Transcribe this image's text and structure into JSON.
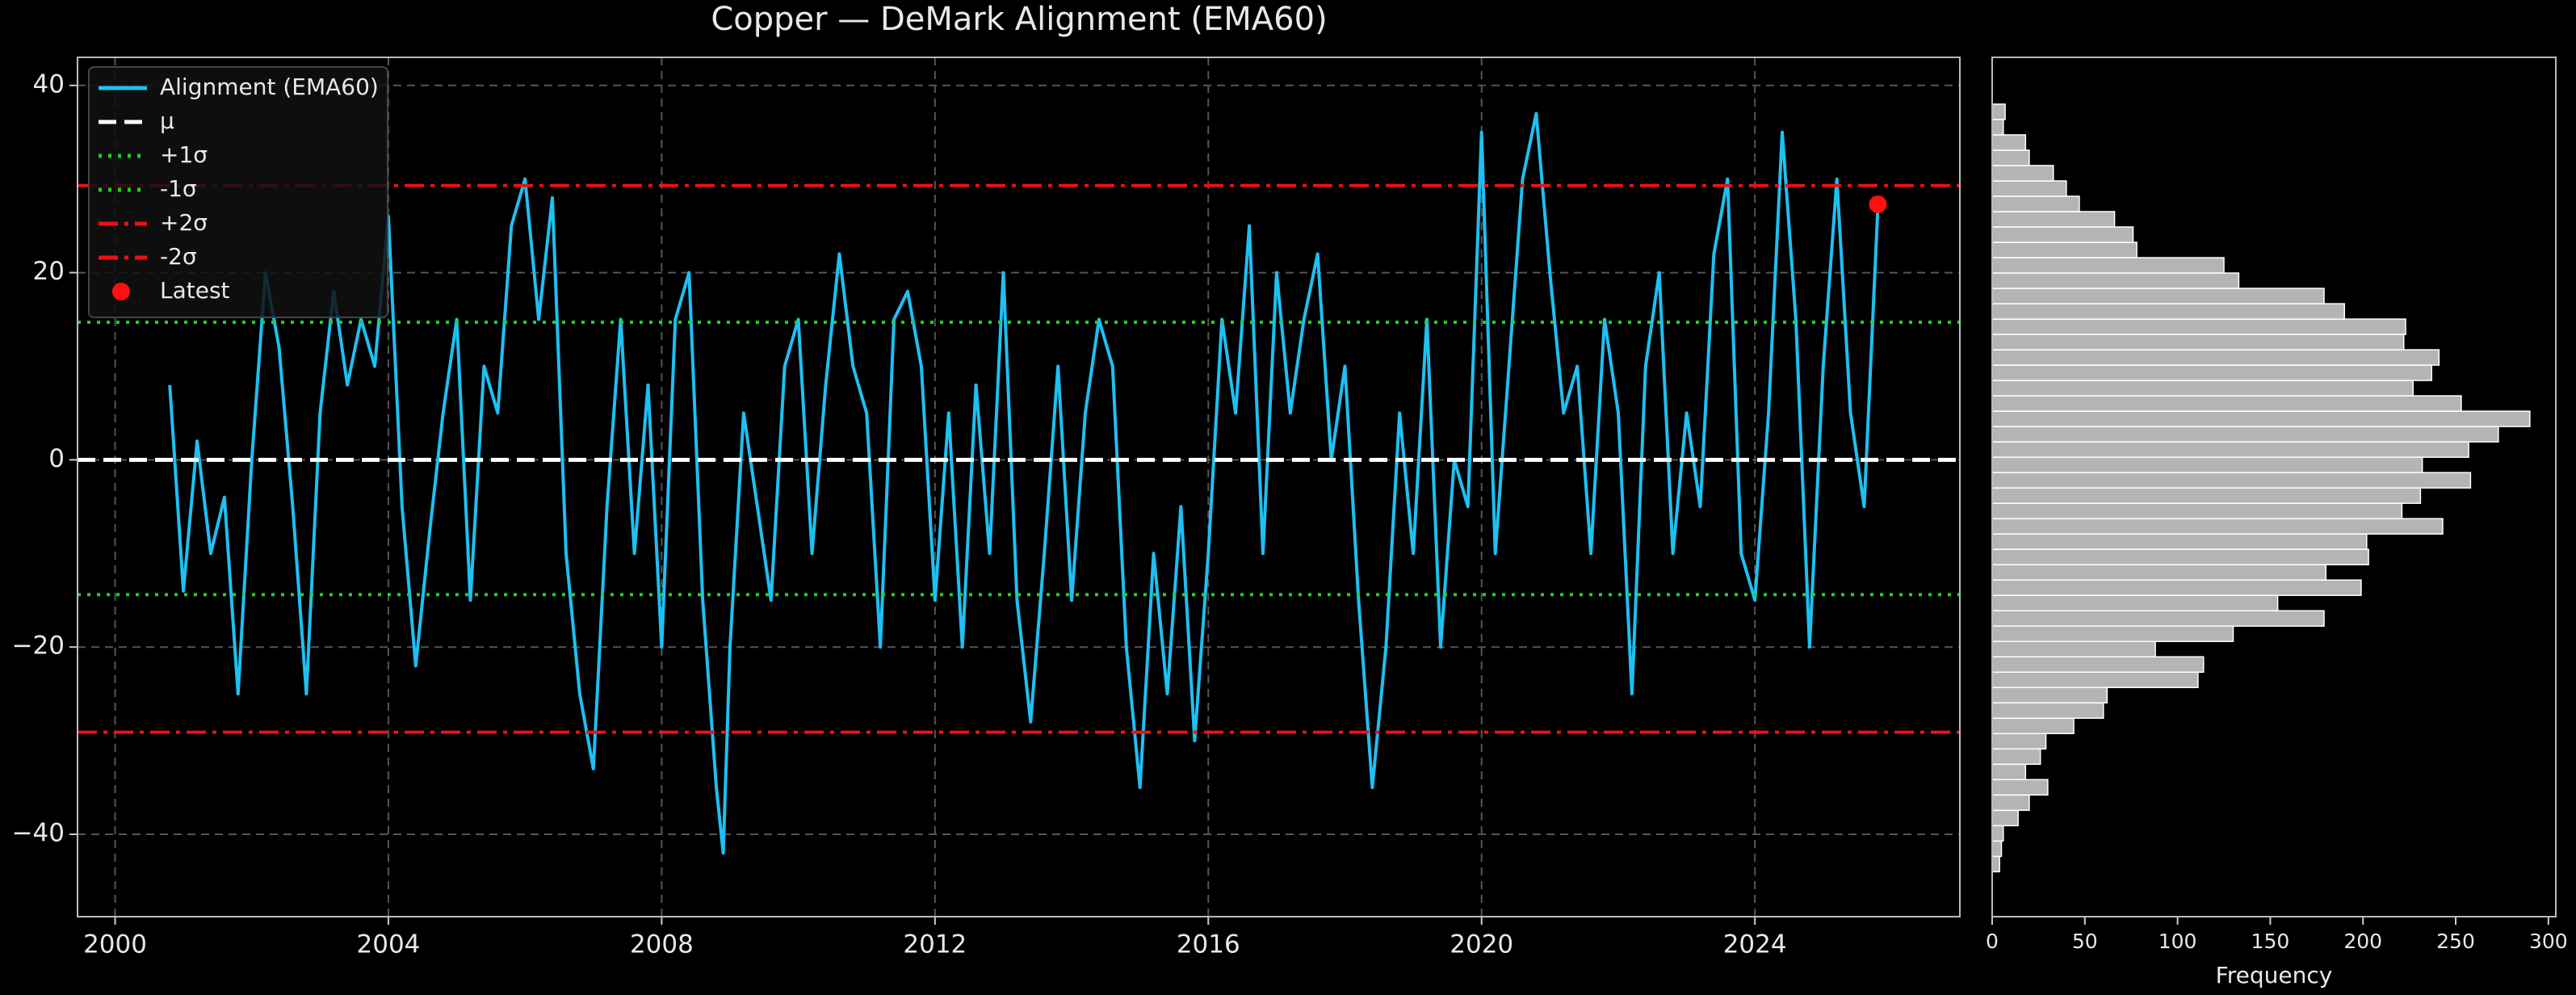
{
  "chart_data": [
    {
      "type": "line",
      "title": "Copper — DeMark Alignment (EMA60)",
      "x": [
        2000.8,
        2001.0,
        2001.2,
        2001.4,
        2001.6,
        2001.8,
        2002.0,
        2002.2,
        2002.4,
        2002.6,
        2002.8,
        2003.0,
        2003.2,
        2003.4,
        2003.6,
        2003.8,
        2004.0,
        2004.2,
        2004.4,
        2004.6,
        2004.8,
        2005.0,
        2005.2,
        2005.4,
        2005.6,
        2005.8,
        2006.0,
        2006.2,
        2006.4,
        2006.6,
        2006.8,
        2007.0,
        2007.2,
        2007.4,
        2007.6,
        2007.8,
        2008.0,
        2008.2,
        2008.4,
        2008.6,
        2008.8,
        2008.9,
        2009.0,
        2009.2,
        2009.4,
        2009.6,
        2009.8,
        2010.0,
        2010.2,
        2010.4,
        2010.6,
        2010.8,
        2011.0,
        2011.2,
        2011.4,
        2011.6,
        2011.8,
        2012.0,
        2012.2,
        2012.4,
        2012.6,
        2012.8,
        2013.0,
        2013.2,
        2013.4,
        2013.6,
        2013.8,
        2014.0,
        2014.2,
        2014.4,
        2014.6,
        2014.8,
        2015.0,
        2015.2,
        2015.4,
        2015.6,
        2015.8,
        2016.0,
        2016.2,
        2016.4,
        2016.6,
        2016.8,
        2017.0,
        2017.2,
        2017.4,
        2017.6,
        2017.8,
        2018.0,
        2018.2,
        2018.4,
        2018.6,
        2018.8,
        2019.0,
        2019.2,
        2019.4,
        2019.6,
        2019.8,
        2020.0,
        2020.2,
        2020.4,
        2020.6,
        2020.8,
        2021.0,
        2021.2,
        2021.4,
        2021.6,
        2021.8,
        2022.0,
        2022.2,
        2022.4,
        2022.6,
        2022.8,
        2023.0,
        2023.2,
        2023.4,
        2023.6,
        2023.8,
        2024.0,
        2024.2,
        2024.4,
        2024.6,
        2024.8,
        2025.0,
        2025.2,
        2025.4,
        2025.6,
        2025.8
      ],
      "series": [
        {
          "name": "Alignment (EMA60)",
          "color": "#1ec0f2",
          "values": [
            8,
            -14,
            2,
            -10,
            -4,
            -25,
            0,
            20,
            12,
            -5,
            -25,
            5,
            18,
            8,
            15,
            10,
            26,
            -5,
            -22,
            -8,
            5,
            15,
            -15,
            10,
            5,
            25,
            30,
            15,
            28,
            -10,
            -25,
            -33,
            -5,
            15,
            -10,
            8,
            -20,
            15,
            20,
            -15,
            -35,
            -42,
            -20,
            5,
            -5,
            -15,
            10,
            15,
            -10,
            8,
            22,
            10,
            5,
            -20,
            15,
            18,
            10,
            -15,
            5,
            -20,
            8,
            -10,
            20,
            -15,
            -28,
            -10,
            10,
            -15,
            5,
            15,
            10,
            -20,
            -35,
            -10,
            -25,
            -5,
            -30,
            -10,
            15,
            5,
            25,
            -10,
            20,
            5,
            15,
            22,
            0,
            10,
            -15,
            -35,
            -20,
            5,
            -10,
            15,
            -20,
            0,
            -5,
            35,
            -10,
            10,
            30,
            37,
            20,
            5,
            10,
            -10,
            15,
            5,
            -25,
            10,
            20,
            -10,
            5,
            -5,
            22,
            30,
            -10,
            -15,
            5,
            35,
            15,
            -20,
            10,
            30,
            5,
            -5,
            27
          ]
        }
      ],
      "reference_lines": [
        {
          "name": "μ",
          "value": 0,
          "color": "#ffffff",
          "style": "dashed"
        },
        {
          "name": "+1σ",
          "value": 14.7,
          "color": "#22d022",
          "style": "dotted"
        },
        {
          "name": "-1σ",
          "value": -14.4,
          "color": "#22d022",
          "style": "dotted"
        },
        {
          "name": "+2σ",
          "value": 29.3,
          "color": "#ee1111",
          "style": "dashdot"
        },
        {
          "name": "-2σ",
          "value": -29.1,
          "color": "#ee1111",
          "style": "dashdot"
        }
      ],
      "latest": {
        "name": "Latest",
        "x": 2025.8,
        "value": 27.3,
        "color": "#ff1010"
      },
      "xlim": [
        1999.45,
        2027.0
      ],
      "xticks": [
        2000,
        2004,
        2008,
        2012,
        2016,
        2020,
        2024
      ],
      "ylim": [
        -48.8,
        43
      ],
      "yticks": [
        {
          "value": -40,
          "label": "−40"
        },
        {
          "value": -20,
          "label": "−20"
        },
        0,
        20,
        40
      ],
      "grid": true,
      "legend": "upper left"
    },
    {
      "type": "histogram",
      "orientation": "horizontal",
      "xlabel": "Frequency",
      "color": "#b4b4b4",
      "bins": [
        -44.0,
        -42.36,
        -40.72,
        -39.08,
        -37.44,
        -35.8,
        -34.16,
        -32.52,
        -30.88,
        -29.24,
        -27.6,
        -25.96,
        -24.32,
        -22.68,
        -21.04,
        -19.4,
        -17.76,
        -16.12,
        -14.48,
        -12.84,
        -11.2,
        -9.56,
        -7.92,
        -6.28,
        -4.64,
        -3.0,
        -1.36,
        0.28,
        1.92,
        3.56,
        5.2,
        6.84,
        8.48,
        10.12,
        11.76,
        13.4,
        15.04,
        16.68,
        18.32,
        19.96,
        21.6,
        23.24,
        24.88,
        26.52,
        28.16,
        29.8,
        31.44,
        33.08,
        34.72,
        36.36,
        38.0
      ],
      "counts": [
        4,
        5,
        6,
        14,
        20,
        30,
        18,
        26,
        29,
        44,
        60,
        62,
        111,
        114,
        88,
        130,
        179,
        154,
        199,
        180,
        203,
        202,
        243,
        221,
        231,
        258,
        232,
        257,
        273,
        290,
        253,
        227,
        237,
        241,
        222,
        223,
        190,
        179,
        133,
        125,
        78,
        76,
        66,
        47,
        40,
        33,
        20,
        18,
        6,
        7
      ],
      "xlim": [
        0,
        304
      ],
      "xticks": [
        0,
        50,
        100,
        150,
        200,
        250,
        300
      ]
    }
  ]
}
